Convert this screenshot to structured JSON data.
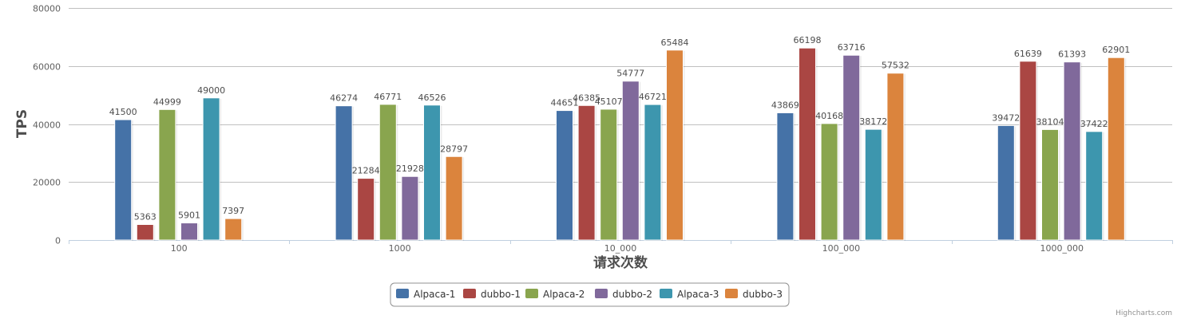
{
  "chart_data": {
    "type": "bar",
    "title": "",
    "xlabel": "请求次数",
    "ylabel": "TPS",
    "ylim": [
      0,
      80000
    ],
    "yticks": [
      0,
      20000,
      40000,
      60000,
      80000
    ],
    "grid": true,
    "legend_position": "bottom-center",
    "categories": [
      "100",
      "1000",
      "10_000",
      "100_000",
      "1000_000"
    ],
    "series": [
      {
        "name": "Alpaca-1",
        "color": "#4572a7",
        "values": [
          41500,
          46274,
          44651,
          43869,
          39472
        ]
      },
      {
        "name": "dubbo-1",
        "color": "#aa4643",
        "values": [
          5363,
          21284,
          46385,
          66198,
          61639
        ]
      },
      {
        "name": "Alpaca-2",
        "color": "#89a54e",
        "values": [
          44999,
          46771,
          45107,
          40168,
          38104
        ]
      },
      {
        "name": "dubbo-2",
        "color": "#80699b",
        "values": [
          5901,
          21928,
          54777,
          63716,
          61393
        ]
      },
      {
        "name": "Alpaca-3",
        "color": "#3d96ae",
        "values": [
          49000,
          46526,
          46721,
          38172,
          37422
        ]
      },
      {
        "name": "dubbo-3",
        "color": "#db843d",
        "values": [
          7397,
          28797,
          65484,
          57532,
          62901
        ]
      }
    ]
  },
  "credits": "Highcharts.com"
}
